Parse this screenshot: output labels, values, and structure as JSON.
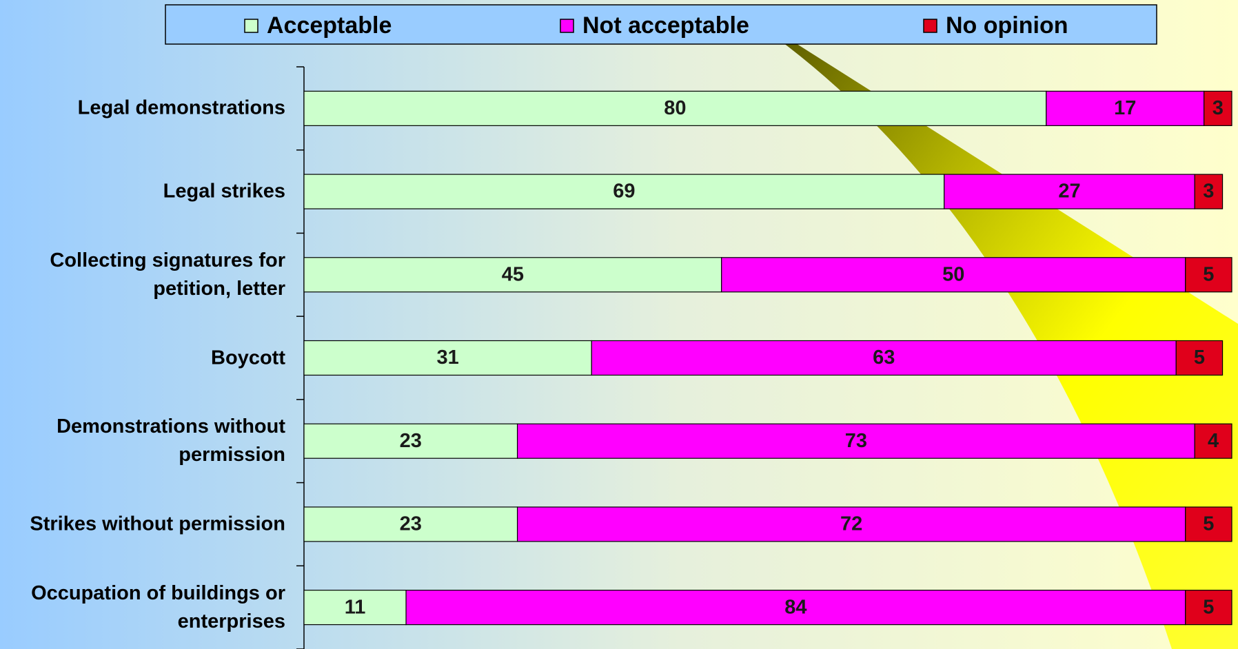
{
  "chart_data": {
    "type": "stacked-bar-horizontal",
    "categories": [
      "Legal demonstrations",
      "Legal strikes",
      "Collecting signatures for petition, letter",
      "Boycott",
      "Demonstrations without permission",
      "Strikes without permission",
      "Occupation of buildings or enterprises"
    ],
    "series": [
      {
        "name": "Acceptable",
        "color": "#ccffcc",
        "values": [
          80,
          69,
          45,
          31,
          23,
          23,
          11
        ]
      },
      {
        "name": "Not acceptable",
        "color": "#ff00ff",
        "values": [
          17,
          27,
          50,
          63,
          73,
          72,
          84
        ]
      },
      {
        "name": "No opinion",
        "color": "#e0001b",
        "values": [
          3,
          3,
          5,
          5,
          4,
          5,
          5
        ]
      }
    ],
    "legend": "top"
  }
}
